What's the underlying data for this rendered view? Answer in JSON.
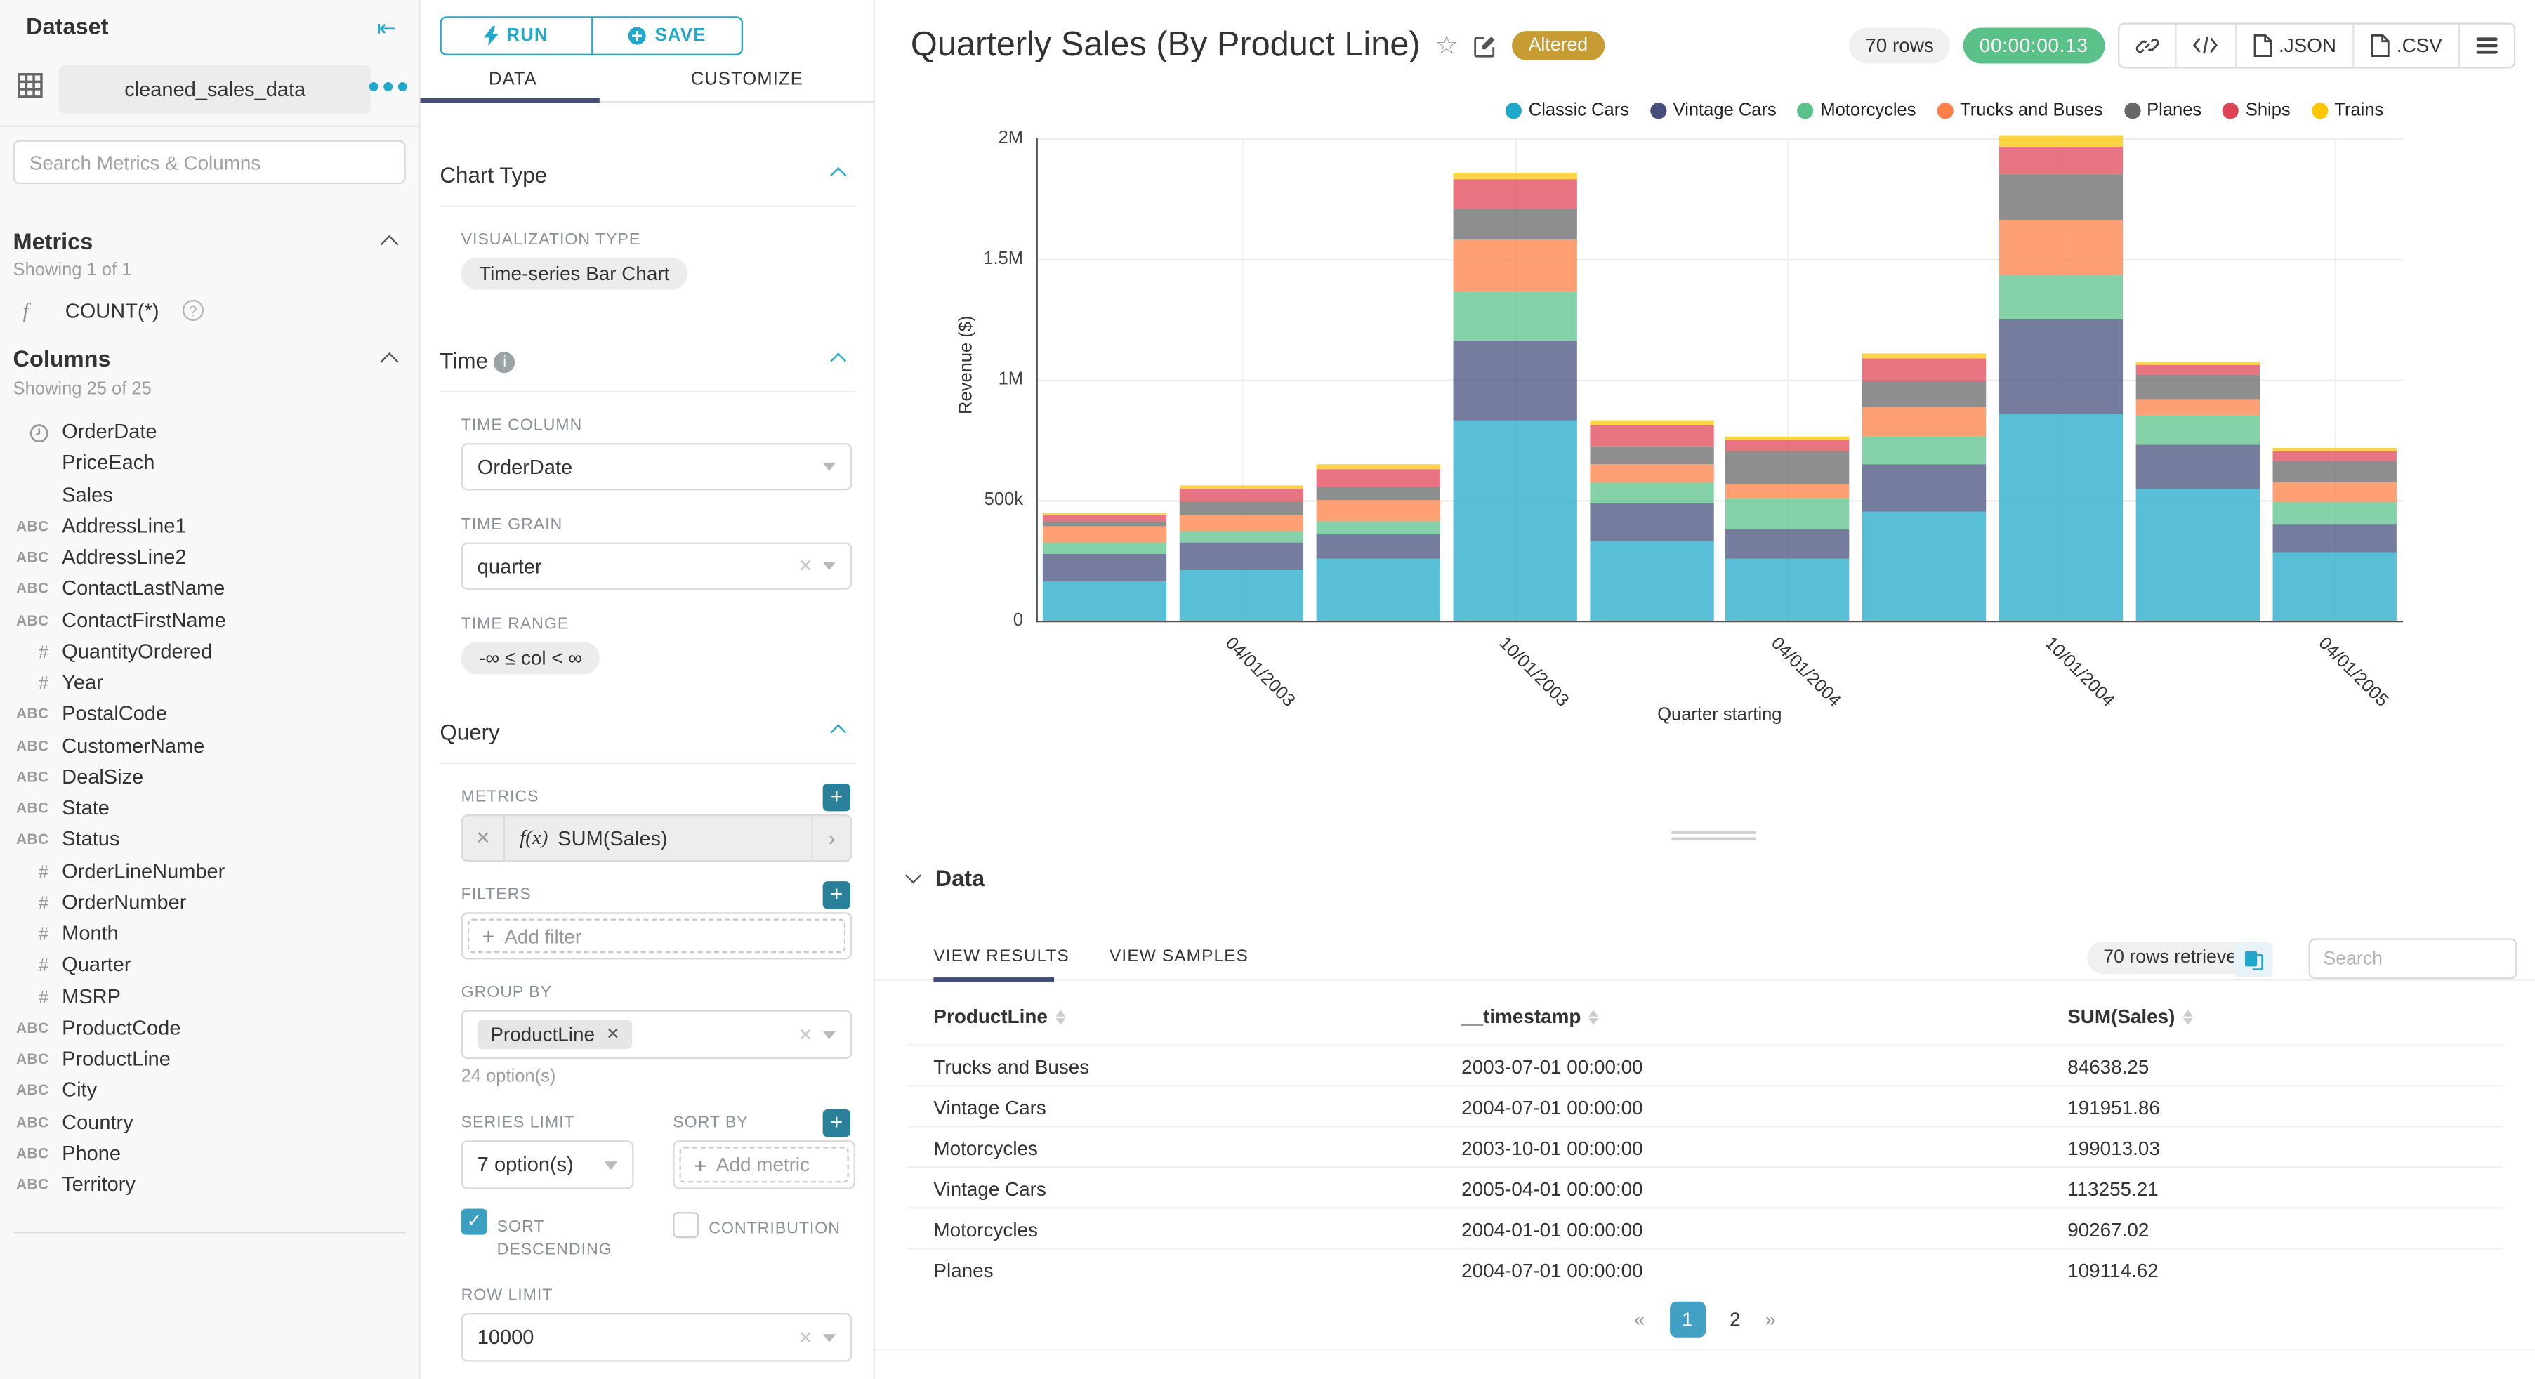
{
  "dataset_panel": {
    "title": "Dataset",
    "dataset_name": "cleaned_sales_data",
    "search_placeholder": "Search Metrics & Columns",
    "metrics": {
      "header": "Metrics",
      "showing": "Showing 1 of 1",
      "items": [
        {
          "prefix": "f",
          "label": "COUNT(*)"
        }
      ]
    },
    "columns": {
      "header": "Columns",
      "showing": "Showing 25 of 25",
      "items": [
        {
          "type": "time",
          "name": "OrderDate"
        },
        {
          "type": "none",
          "name": "PriceEach"
        },
        {
          "type": "none",
          "name": "Sales"
        },
        {
          "type": "str",
          "name": "AddressLine1"
        },
        {
          "type": "str",
          "name": "AddressLine2"
        },
        {
          "type": "str",
          "name": "ContactLastName"
        },
        {
          "type": "str",
          "name": "ContactFirstName"
        },
        {
          "type": "num",
          "name": "QuantityOrdered"
        },
        {
          "type": "num",
          "name": "Year"
        },
        {
          "type": "str",
          "name": "PostalCode"
        },
        {
          "type": "str",
          "name": "CustomerName"
        },
        {
          "type": "str",
          "name": "DealSize"
        },
        {
          "type": "str",
          "name": "State"
        },
        {
          "type": "str",
          "name": "Status"
        },
        {
          "type": "num",
          "name": "OrderLineNumber"
        },
        {
          "type": "num",
          "name": "OrderNumber"
        },
        {
          "type": "num",
          "name": "Month"
        },
        {
          "type": "num",
          "name": "Quarter"
        },
        {
          "type": "num",
          "name": "MSRP"
        },
        {
          "type": "str",
          "name": "ProductCode"
        },
        {
          "type": "str",
          "name": "ProductLine"
        },
        {
          "type": "str",
          "name": "City"
        },
        {
          "type": "str",
          "name": "Country"
        },
        {
          "type": "str",
          "name": "Phone"
        },
        {
          "type": "str",
          "name": "Territory"
        }
      ]
    }
  },
  "control_panel": {
    "run_label": "RUN",
    "save_label": "SAVE",
    "tabs": {
      "data": "DATA",
      "customize": "CUSTOMIZE"
    },
    "active_tab": "DATA",
    "chart_type": {
      "header": "Chart Type",
      "viz_label": "VISUALIZATION TYPE",
      "viz_value": "Time-series Bar Chart"
    },
    "time": {
      "header": "Time",
      "time_column_label": "TIME COLUMN",
      "time_column": "OrderDate",
      "time_grain_label": "TIME GRAIN",
      "time_grain": "quarter",
      "time_range_label": "TIME RANGE",
      "time_range": "-∞ ≤ col < ∞"
    },
    "query": {
      "header": "Query",
      "metrics_label": "METRICS",
      "metric_fx": "f(x)",
      "metric": "SUM(Sales)",
      "filters_label": "FILTERS",
      "add_filter": "Add filter",
      "group_by_label": "GROUP BY",
      "group_by_tag": "ProductLine",
      "options_hint": "24 option(s)",
      "series_limit_label": "SERIES LIMIT",
      "series_limit": "7 option(s)",
      "sort_by_label": "SORT BY",
      "add_metric": "Add metric",
      "sort_descending_label": "SORT DESCENDING",
      "sort_descending_checked": true,
      "contribution_label": "CONTRIBUTION",
      "contribution_checked": false,
      "row_limit_label": "ROW LIMIT",
      "row_limit": "10000"
    }
  },
  "header": {
    "title": "Quarterly Sales (By Product Line)",
    "altered_badge": "Altered",
    "rows_pill": "70 rows",
    "timer": "00:00:00.13",
    "export_json": ".JSON",
    "export_csv": ".CSV"
  },
  "chart_data": {
    "type": "bar",
    "stacked": true,
    "title": "Quarterly Sales (By Product Line)",
    "xlabel": "Quarter starting",
    "ylabel": "Revenue ($)",
    "ylim": [
      0,
      2000000
    ],
    "grid": true,
    "legend_position": "top-right",
    "y_ticks": [
      {
        "value": 0,
        "label": "0"
      },
      {
        "value": 500000,
        "label": "500k"
      },
      {
        "value": 1000000,
        "label": "1M"
      },
      {
        "value": 1500000,
        "label": "1.5M"
      },
      {
        "value": 2000000,
        "label": "2M"
      }
    ],
    "categories": [
      "2003-01-01",
      "2003-04-01",
      "2003-07-01",
      "2003-10-01",
      "2004-01-01",
      "2004-04-01",
      "2004-07-01",
      "2004-10-01",
      "2005-01-01",
      "2005-04-01"
    ],
    "x_tick_labels": [
      "04/01/2003",
      "10/01/2003",
      "04/01/2004",
      "10/01/2004",
      "04/01/2005"
    ],
    "labeled_bar_indices": [
      1,
      3,
      5,
      7,
      9
    ],
    "series": [
      {
        "name": "Classic Cars",
        "color": "#1FA8C9",
        "values": [
          160000,
          210000,
          255000,
          830000,
          330000,
          256000,
          455000,
          860000,
          545000,
          284000
        ]
      },
      {
        "name": "Vintage Cars",
        "color": "#454E7C",
        "values": [
          115000,
          115000,
          102000,
          335000,
          155000,
          121000,
          191951.86,
          390000,
          188000,
          113255.21
        ]
      },
      {
        "name": "Motorcycles",
        "color": "#5AC189",
        "values": [
          48000,
          48000,
          58000,
          199013.03,
          90267.02,
          129000,
          120000,
          185000,
          120000,
          95000
        ]
      },
      {
        "name": "Trucks and Buses",
        "color": "#FF7F44",
        "values": [
          68000,
          66000,
          84638.25,
          217000,
          71000,
          65000,
          118000,
          225000,
          65000,
          81000
        ]
      },
      {
        "name": "Planes",
        "color": "#666666",
        "values": [
          24000,
          53000,
          56000,
          128000,
          80000,
          132000,
          109114.62,
          190000,
          100000,
          88000
        ]
      },
      {
        "name": "Ships",
        "color": "#E04355",
        "values": [
          23000,
          58000,
          72000,
          121000,
          82000,
          50000,
          92000,
          115000,
          42000,
          40000
        ]
      },
      {
        "name": "Trains",
        "color": "#FCC700",
        "values": [
          7095,
          12365,
          21877,
          29992,
          25464,
          13261,
          23329,
          49775,
          11992,
          18239
        ]
      }
    ]
  },
  "data_panel": {
    "header": "Data",
    "tabs": {
      "results": "VIEW RESULTS",
      "samples": "VIEW SAMPLES"
    },
    "active_tab": "VIEW RESULTS",
    "rows_retrieved": "70 rows retrieved",
    "search_placeholder": "Search",
    "table": {
      "columns": [
        "ProductLine",
        "__timestamp",
        "SUM(Sales)"
      ],
      "rows": [
        [
          "Trucks and Buses",
          "2003-07-01 00:00:00",
          "84638.25"
        ],
        [
          "Vintage Cars",
          "2004-07-01 00:00:00",
          "191951.86"
        ],
        [
          "Motorcycles",
          "2003-10-01 00:00:00",
          "199013.03"
        ],
        [
          "Vintage Cars",
          "2005-04-01 00:00:00",
          "113255.21"
        ],
        [
          "Motorcycles",
          "2004-01-01 00:00:00",
          "90267.02"
        ],
        [
          "Planes",
          "2004-07-01 00:00:00",
          "109114.62"
        ]
      ]
    },
    "pagination": {
      "prev": "«",
      "pages": [
        "1",
        "2"
      ],
      "active": "1",
      "next": "»"
    }
  }
}
